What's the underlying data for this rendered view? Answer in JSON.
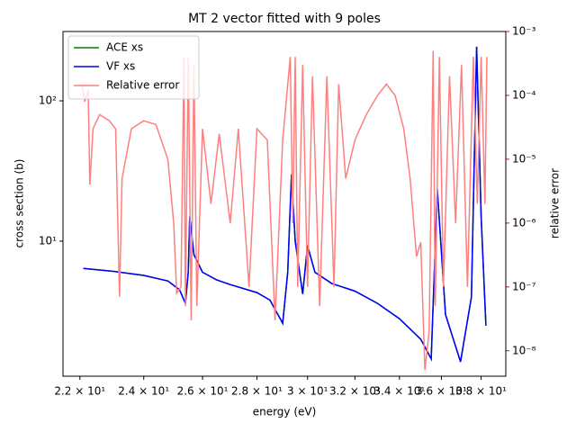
{
  "chart_data": {
    "type": "line",
    "title": "MT 2 vector fitted with 9 poles",
    "xlabel": "energy (eV)",
    "ylabel": "cross section (b)",
    "y2label": "relative error",
    "xscale": "log",
    "yscale": "log",
    "y2scale": "log",
    "xlim": [
      21.5,
      39.3
    ],
    "ylim": [
      1.09,
      312
    ],
    "y2lim": [
      4e-09,
      0.001
    ],
    "xticks": [
      {
        "value": 22,
        "label": "2.2 × 10¹"
      },
      {
        "value": 24,
        "label": "2.4 × 10¹"
      },
      {
        "value": 26,
        "label": "2.6 × 10¹"
      },
      {
        "value": 28,
        "label": "2.8 × 10¹"
      },
      {
        "value": 30,
        "label": "3 × 10¹"
      },
      {
        "value": 32,
        "label": "3.2 × 10¹"
      },
      {
        "value": 34,
        "label": "3.4 × 10¹"
      },
      {
        "value": 36,
        "label": "3.6 × 10¹"
      },
      {
        "value": 38,
        "label": "3.8 × 10¹"
      }
    ],
    "yticks": [
      {
        "value": 10,
        "label": "10¹"
      },
      {
        "value": 100,
        "label": "10²"
      }
    ],
    "y2ticks": [
      {
        "value": 1e-08,
        "label": "10⁻⁸"
      },
      {
        "value": 1e-07,
        "label": "10⁻⁷"
      },
      {
        "value": 1e-06,
        "label": "10⁻⁶"
      },
      {
        "value": 1e-05,
        "label": "10⁻⁵"
      },
      {
        "value": 0.0001,
        "label": "10⁻⁴"
      },
      {
        "value": 0.001,
        "label": "10⁻³"
      }
    ],
    "ycolor": "#0000ff",
    "y2color": "#ff0000",
    "legend": "upper left",
    "series": [
      {
        "name": "ACE xs",
        "color": "#008000",
        "x": [
          22.1,
          23,
          24,
          24.8,
          25.2,
          25.4,
          25.5,
          25.55,
          25.7,
          26,
          26.5,
          27,
          28,
          28.5,
          29,
          29.2,
          29.35,
          29.5,
          29.8,
          30,
          30.3,
          31,
          32,
          33,
          34,
          35,
          35.5,
          35.8,
          36.2,
          36.95,
          37.5,
          37.77,
          38.0,
          38.25
        ],
        "values": [
          6.4,
          6.1,
          5.7,
          5.2,
          4.5,
          3.6,
          6,
          15,
          8,
          6,
          5.3,
          4.9,
          4.3,
          3.8,
          2.6,
          6,
          30,
          10,
          4.2,
          9.3,
          6,
          5,
          4.4,
          3.6,
          2.8,
          2,
          1.45,
          23.5,
          3,
          1.38,
          4,
          243,
          15,
          2.5
        ]
      },
      {
        "name": "VF xs",
        "color": "#0000ff",
        "x": [
          22.1,
          23,
          24,
          24.8,
          25.2,
          25.4,
          25.5,
          25.55,
          25.7,
          26,
          26.5,
          27,
          28,
          28.5,
          29,
          29.2,
          29.35,
          29.5,
          29.8,
          30,
          30.3,
          31,
          32,
          33,
          34,
          35,
          35.5,
          35.8,
          36.2,
          36.95,
          37.5,
          37.77,
          38.0,
          38.25
        ],
        "values": [
          6.4,
          6.1,
          5.7,
          5.2,
          4.5,
          3.6,
          6,
          15,
          8,
          6,
          5.3,
          4.9,
          4.3,
          3.8,
          2.6,
          6,
          30,
          10,
          4.2,
          9.3,
          6,
          5,
          4.4,
          3.6,
          2.8,
          2,
          1.45,
          23.5,
          3,
          1.38,
          4,
          243,
          15,
          2.5
        ]
      },
      {
        "name": "Relative error",
        "color": "#ff7f7f",
        "axis": "y2",
        "x": [
          22.05,
          22.15,
          22.25,
          22.3,
          22.4,
          22.6,
          22.9,
          23.1,
          23.22,
          23.3,
          23.6,
          24,
          24.4,
          24.8,
          25,
          25.1,
          25.25,
          25.35,
          25.4,
          25.5,
          25.6,
          25.7,
          25.8,
          26,
          26.3,
          26.6,
          27,
          27.3,
          27.7,
          28,
          28.4,
          28.7,
          29,
          29.3,
          29.4,
          29.5,
          29.6,
          29.8,
          30,
          30.2,
          30.5,
          30.8,
          31.1,
          31.3,
          31.6,
          32,
          32.5,
          33,
          33.4,
          33.8,
          34.2,
          34.5,
          34.8,
          35,
          35.2,
          35.4,
          35.6,
          35.7,
          35.9,
          36.1,
          36.4,
          36.7,
          37,
          37.3,
          37.6,
          37.8,
          38,
          38.2,
          38.3
        ],
        "values": [
          0.00015,
          8e-05,
          0.00012,
          4e-06,
          3e-05,
          5e-05,
          4e-05,
          3e-05,
          7e-08,
          5e-06,
          3e-05,
          4e-05,
          3.5e-05,
          1e-05,
          1e-06,
          8e-08,
          1e-07,
          0.0004,
          5e-08,
          0.0004,
          3e-08,
          0.0003,
          5e-08,
          3e-05,
          2e-06,
          2.5e-05,
          1e-06,
          3e-05,
          1e-07,
          3e-05,
          2e-05,
          3e-08,
          2e-05,
          0.0004,
          1e-06,
          0.0004,
          1e-07,
          0.0003,
          1e-07,
          0.0002,
          5e-08,
          0.0002,
          1e-07,
          0.00015,
          5e-06,
          2e-05,
          5e-05,
          0.0001,
          0.00015,
          0.0001,
          3e-05,
          5e-06,
          3e-07,
          5e-07,
          5e-09,
          2e-08,
          0.0005,
          5e-08,
          0.0004,
          1e-07,
          0.0002,
          1e-06,
          0.0003,
          1e-07,
          0.0004,
          2e-06,
          0.0004,
          2e-06,
          0.0004
        ]
      }
    ]
  }
}
